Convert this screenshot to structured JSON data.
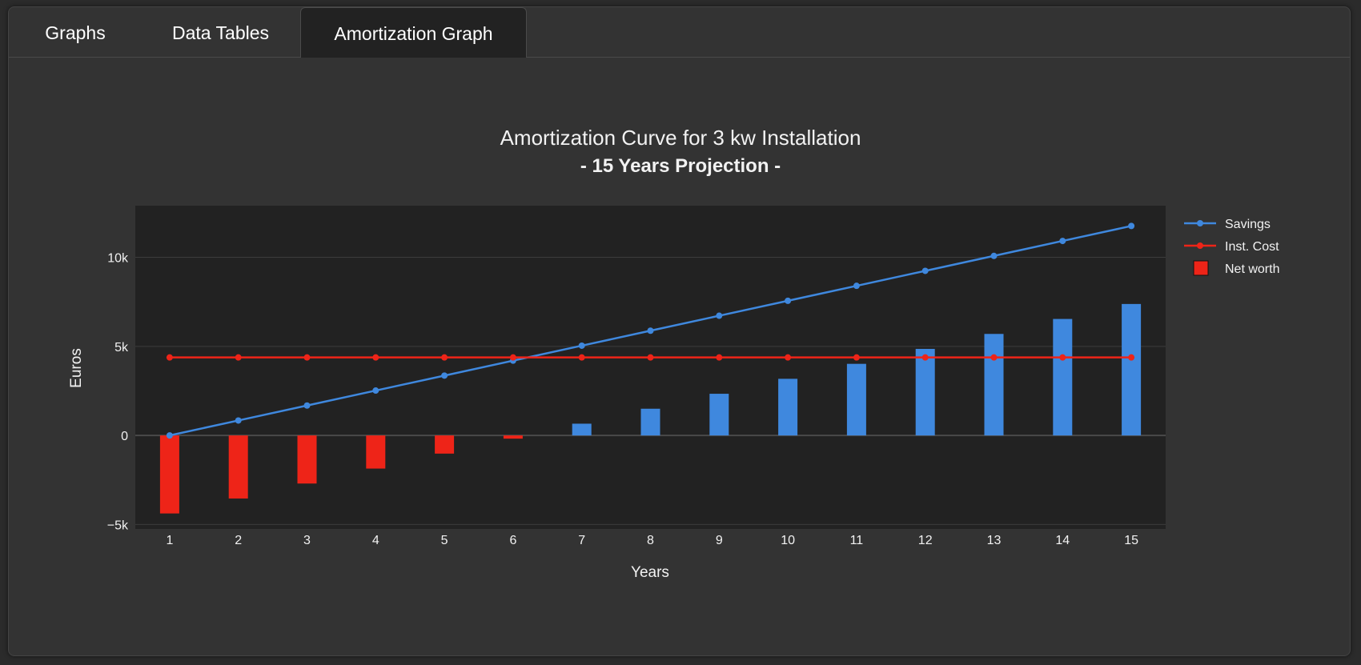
{
  "tabs": [
    {
      "label": "Graphs",
      "active": false
    },
    {
      "label": "Data Tables",
      "active": false
    },
    {
      "label": "Amortization Graph",
      "active": true
    }
  ],
  "colors": {
    "savings": "#3f88de",
    "inst_cost": "#ee2418",
    "net_positive": "#3f88de",
    "net_negative": "#ee2418",
    "plot_bg": "#222222",
    "panel_bg": "#333333",
    "grid": "#3c3c3c"
  },
  "chart_data": {
    "type": "bar",
    "title": "Amortization Curve for 3 kw Installation",
    "subtitle": "- 15 Years Projection -",
    "xlabel": "Years",
    "ylabel": "Euros",
    "categories": [
      "1",
      "2",
      "3",
      "4",
      "5",
      "6",
      "7",
      "8",
      "9",
      "10",
      "11",
      "12",
      "13",
      "14",
      "15"
    ],
    "ylim": [
      -5250,
      12900
    ],
    "yticks": [
      -5000,
      0,
      5000,
      10000
    ],
    "ytick_labels": [
      "−5k",
      "0",
      "5k",
      "10k"
    ],
    "grid": true,
    "legend_position": "top-right",
    "series": [
      {
        "name": "Savings",
        "type": "line",
        "values": [
          0,
          840,
          1680,
          2520,
          3360,
          4200,
          5040,
          5880,
          6720,
          7560,
          8400,
          9240,
          10080,
          10920,
          11760
        ]
      },
      {
        "name": "Inst. Cost",
        "type": "line",
        "values": [
          4380,
          4380,
          4380,
          4380,
          4380,
          4380,
          4380,
          4380,
          4380,
          4380,
          4380,
          4380,
          4380,
          4380,
          4380
        ]
      },
      {
        "name": "Net worth",
        "type": "bar",
        "values": [
          -4380,
          -3540,
          -2700,
          -1860,
          -1020,
          -180,
          660,
          1500,
          2340,
          3180,
          4020,
          4860,
          5700,
          6540,
          7380
        ]
      }
    ]
  }
}
